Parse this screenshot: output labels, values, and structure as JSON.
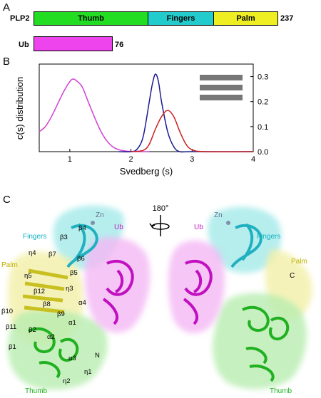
{
  "panel_a": {
    "label": "A",
    "plp2": {
      "name": "PLP2",
      "end": "237",
      "domains": [
        {
          "name": "Thumb",
          "color": "#22dd22"
        },
        {
          "name": "Fingers",
          "color": "#22cccc"
        },
        {
          "name": "Palm",
          "color": "#eeee22"
        }
      ]
    },
    "ub": {
      "name": "Ub",
      "end": "76",
      "color": "#ee44ee"
    }
  },
  "panel_b": {
    "label": "B",
    "chart_data": {
      "type": "line",
      "xlabel": "Svedberg (s)",
      "ylabel": "c(s)  distribution",
      "xlim": [
        0.5,
        4
      ],
      "xticks": [
        "1",
        "2",
        "3",
        "4"
      ],
      "ylim_right": [
        0,
        0.35
      ],
      "yticks_right": [
        "0.0",
        "0.1",
        "0.2",
        "0.3"
      ],
      "series": [
        {
          "color": "#d040d0",
          "x": [
            0.5,
            0.6,
            0.7,
            0.8,
            0.9,
            1.0,
            1.05,
            1.1,
            1.2,
            1.3,
            1.4,
            1.5,
            1.6,
            1.7,
            1.8,
            1.9,
            2.0,
            2.1,
            2.2,
            2.3
          ],
          "y": [
            0.08,
            0.1,
            0.14,
            0.19,
            0.24,
            0.28,
            0.29,
            0.285,
            0.26,
            0.2,
            0.14,
            0.085,
            0.045,
            0.02,
            0.008,
            0.003,
            0.001,
            0.0,
            0.0,
            0.0
          ]
        },
        {
          "color": "#1a1a90",
          "x": [
            1.8,
            2.0,
            2.1,
            2.2,
            2.3,
            2.35,
            2.4,
            2.45,
            2.5,
            2.6,
            2.7,
            2.8,
            3.0,
            4.0
          ],
          "y": [
            0.0,
            0.0,
            0.01,
            0.06,
            0.2,
            0.27,
            0.31,
            0.28,
            0.2,
            0.08,
            0.02,
            0.0,
            0.0,
            0.0
          ]
        },
        {
          "color": "#cc2020",
          "x": [
            2.0,
            2.2,
            2.3,
            2.4,
            2.5,
            2.6,
            2.7,
            2.8,
            2.9,
            3.0,
            3.2,
            4.0
          ],
          "y": [
            0.0,
            0.005,
            0.03,
            0.09,
            0.14,
            0.165,
            0.14,
            0.08,
            0.03,
            0.008,
            0.0,
            0.0
          ]
        }
      ]
    }
  },
  "panel_c": {
    "label": "C",
    "rotation": "180°",
    "left": {
      "domains": {
        "fingers": "Fingers",
        "palm": "Palm",
        "thumb": "Thumb",
        "ub": "Ub",
        "zn": "Zn"
      },
      "ss": [
        "β3",
        "β4",
        "η4",
        "β7",
        "β6",
        "η5",
        "β5",
        "β12",
        "η3",
        "α4",
        "β8",
        "β10",
        "β9",
        "α1",
        "β11",
        "β2",
        "α2",
        "β1",
        "α3",
        "N",
        "η1",
        "η2"
      ]
    },
    "right": {
      "domains": {
        "fingers": "Fingers",
        "palm": "Palm",
        "thumb": "Thumb",
        "ub": "Ub",
        "zn": "Zn",
        "c": "C"
      }
    }
  }
}
